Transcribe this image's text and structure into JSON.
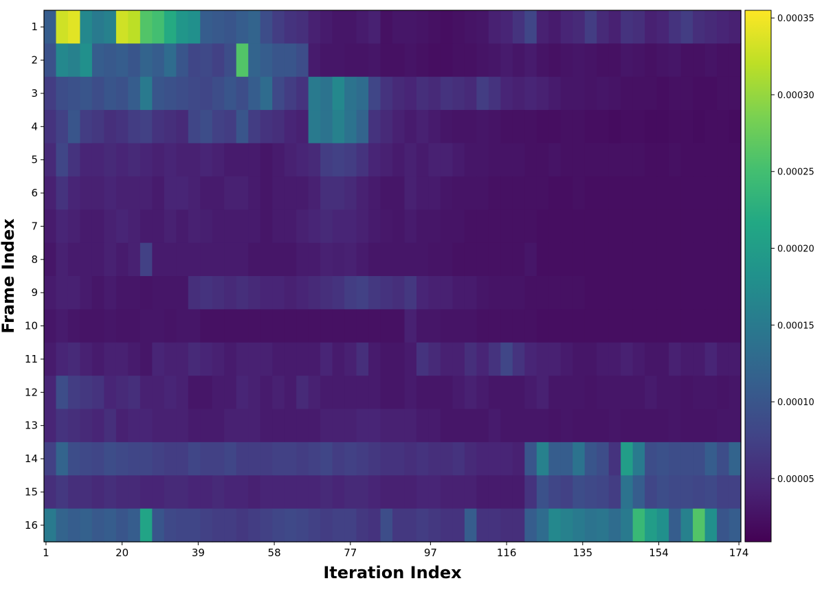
{
  "chart_data": {
    "type": "heatmap",
    "title": "",
    "xlabel": "Iteration Index",
    "ylabel": "Frame Index",
    "colormap": "viridis",
    "x_range": [
      1,
      174
    ],
    "x_ticks": [
      "1",
      "20",
      "39",
      "58",
      "77",
      "97",
      "116",
      "135",
      "154",
      "174"
    ],
    "x_tick_values": [
      1,
      20,
      39,
      58,
      77,
      97,
      116,
      135,
      154,
      174
    ],
    "y_ticks": [
      "1",
      "2",
      "3",
      "4",
      "5",
      "6",
      "7",
      "8",
      "9",
      "10",
      "11",
      "12",
      "13",
      "14",
      "15",
      "16"
    ],
    "colorbar": {
      "vmin": 8.8e-06,
      "vmax": 0.000355,
      "ticks": [
        "0.00005",
        "0.00010",
        "0.00015",
        "0.00020",
        "0.00025",
        "0.00030",
        "0.00035"
      ],
      "tick_values": [
        5e-05,
        0.0001,
        0.00015,
        0.0002,
        0.00025,
        0.0003,
        0.00035
      ]
    },
    "value_unit_scale": 1e-06,
    "iterations_per_block": 3,
    "rows": [
      [
        110,
        330,
        340,
        170,
        150,
        160,
        330,
        320,
        260,
        250,
        220,
        190,
        180,
        110,
        105,
        100,
        110,
        120,
        90,
        70,
        60,
        55,
        40,
        35,
        30,
        30,
        35,
        40,
        25,
        30,
        30,
        28,
        25,
        22,
        25,
        28,
        30,
        40,
        45,
        60,
        80,
        40,
        35,
        45,
        50,
        70,
        50,
        40,
        60,
        55,
        40,
        45,
        60,
        70,
        55,
        50,
        45,
        40
      ],
      [
        95,
        170,
        160,
        180,
        110,
        105,
        110,
        100,
        120,
        110,
        130,
        100,
        80,
        85,
        75,
        90,
        260,
        120,
        110,
        100,
        100,
        90,
        35,
        30,
        30,
        28,
        28,
        30,
        25,
        25,
        28,
        25,
        22,
        22,
        25,
        25,
        28,
        30,
        35,
        30,
        35,
        28,
        25,
        28,
        30,
        28,
        25,
        25,
        30,
        28,
        25,
        28,
        30,
        25,
        25,
        28,
        25,
        25
      ],
      [
        70,
        90,
        95,
        100,
        90,
        100,
        95,
        110,
        150,
        100,
        95,
        90,
        85,
        80,
        90,
        100,
        90,
        110,
        130,
        85,
        70,
        60,
        150,
        140,
        170,
        140,
        130,
        80,
        60,
        50,
        45,
        55,
        50,
        60,
        55,
        50,
        70,
        60,
        45,
        40,
        45,
        40,
        35,
        30,
        30,
        28,
        30,
        28,
        25,
        25,
        25,
        22,
        25,
        25,
        22,
        22,
        25,
        25
      ],
      [
        60,
        75,
        100,
        70,
        65,
        55,
        60,
        70,
        75,
        60,
        55,
        50,
        80,
        90,
        75,
        70,
        100,
        70,
        60,
        55,
        45,
        40,
        150,
        140,
        160,
        140,
        120,
        60,
        50,
        40,
        35,
        40,
        35,
        30,
        28,
        28,
        30,
        28,
        25,
        25,
        25,
        22,
        22,
        25,
        25,
        22,
        22,
        20,
        22,
        22,
        20,
        20,
        22,
        22,
        20,
        22,
        22,
        20
      ],
      [
        50,
        80,
        60,
        45,
        45,
        50,
        45,
        50,
        45,
        40,
        45,
        40,
        40,
        45,
        40,
        35,
        35,
        35,
        30,
        35,
        40,
        45,
        50,
        70,
        75,
        70,
        60,
        45,
        40,
        35,
        40,
        35,
        40,
        40,
        35,
        30,
        30,
        28,
        28,
        28,
        25,
        25,
        28,
        25,
        25,
        25,
        25,
        25,
        25,
        25,
        22,
        22,
        25,
        22,
        22,
        22,
        22,
        22
      ],
      [
        40,
        60,
        45,
        40,
        40,
        45,
        40,
        40,
        40,
        35,
        45,
        45,
        40,
        35,
        35,
        40,
        40,
        35,
        30,
        35,
        35,
        35,
        40,
        55,
        55,
        50,
        40,
        35,
        30,
        30,
        40,
        35,
        35,
        30,
        28,
        28,
        28,
        25,
        25,
        25,
        25,
        25,
        22,
        22,
        25,
        22,
        22,
        22,
        22,
        22,
        22,
        22,
        22,
        22,
        22,
        22,
        22,
        22
      ],
      [
        35,
        45,
        40,
        35,
        35,
        40,
        45,
        40,
        35,
        35,
        40,
        35,
        40,
        38,
        35,
        35,
        35,
        35,
        30,
        35,
        35,
        40,
        45,
        50,
        45,
        45,
        40,
        35,
        32,
        30,
        35,
        30,
        30,
        28,
        28,
        25,
        25,
        25,
        25,
        25,
        25,
        22,
        22,
        22,
        22,
        22,
        22,
        22,
        22,
        22,
        22,
        22,
        22,
        22,
        22,
        22,
        22,
        22
      ],
      [
        30,
        40,
        35,
        35,
        35,
        40,
        35,
        40,
        75,
        35,
        35,
        35,
        35,
        35,
        35,
        35,
        35,
        30,
        30,
        30,
        30,
        35,
        35,
        40,
        38,
        40,
        35,
        30,
        30,
        30,
        30,
        30,
        28,
        28,
        25,
        25,
        25,
        25,
        25,
        25,
        30,
        22,
        22,
        22,
        22,
        22,
        22,
        22,
        22,
        22,
        22,
        22,
        22,
        22,
        22,
        22,
        22,
        22
      ],
      [
        35,
        40,
        40,
        35,
        30,
        35,
        30,
        30,
        28,
        30,
        30,
        30,
        55,
        60,
        55,
        50,
        55,
        50,
        45,
        45,
        40,
        45,
        50,
        55,
        60,
        70,
        75,
        65,
        60,
        55,
        65,
        45,
        40,
        40,
        35,
        35,
        30,
        28,
        28,
        28,
        25,
        25,
        25,
        25,
        25,
        22,
        22,
        22,
        22,
        22,
        22,
        22,
        22,
        22,
        22,
        22,
        22,
        22
      ],
      [
        30,
        35,
        30,
        28,
        28,
        30,
        28,
        28,
        30,
        30,
        28,
        30,
        30,
        25,
        25,
        25,
        25,
        25,
        25,
        25,
        25,
        25,
        25,
        25,
        25,
        25,
        25,
        25,
        25,
        25,
        40,
        30,
        30,
        28,
        28,
        28,
        25,
        25,
        25,
        25,
        25,
        22,
        22,
        22,
        22,
        22,
        22,
        22,
        22,
        22,
        22,
        22,
        22,
        22,
        22,
        22,
        22,
        22
      ],
      [
        35,
        45,
        50,
        40,
        35,
        40,
        40,
        35,
        30,
        45,
        40,
        40,
        50,
        45,
        40,
        35,
        40,
        40,
        40,
        35,
        35,
        35,
        35,
        45,
        35,
        40,
        55,
        35,
        30,
        30,
        35,
        60,
        50,
        40,
        40,
        55,
        45,
        60,
        80,
        60,
        45,
        40,
        40,
        35,
        30,
        30,
        35,
        35,
        40,
        35,
        30,
        30,
        40,
        35,
        35,
        45,
        35,
        35
      ],
      [
        45,
        90,
        70,
        65,
        60,
        45,
        50,
        55,
        40,
        40,
        45,
        40,
        30,
        30,
        35,
        35,
        45,
        40,
        35,
        40,
        35,
        50,
        40,
        35,
        35,
        35,
        35,
        35,
        30,
        30,
        35,
        30,
        30,
        30,
        35,
        40,
        35,
        30,
        30,
        30,
        35,
        40,
        30,
        30,
        30,
        28,
        30,
        30,
        30,
        30,
        35,
        30,
        30,
        28,
        30,
        30,
        28,
        30
      ],
      [
        45,
        60,
        55,
        50,
        45,
        55,
        40,
        45,
        45,
        40,
        40,
        40,
        35,
        35,
        35,
        40,
        40,
        40,
        35,
        35,
        35,
        35,
        35,
        40,
        40,
        40,
        45,
        45,
        40,
        40,
        40,
        35,
        35,
        30,
        30,
        30,
        30,
        35,
        30,
        30,
        30,
        30,
        28,
        30,
        28,
        28,
        28,
        30,
        28,
        28,
        28,
        28,
        30,
        28,
        28,
        28,
        30,
        30
      ],
      [
        75,
        120,
        90,
        85,
        80,
        90,
        85,
        80,
        80,
        75,
        70,
        70,
        80,
        75,
        75,
        80,
        70,
        70,
        70,
        75,
        75,
        70,
        75,
        80,
        70,
        75,
        70,
        65,
        60,
        60,
        55,
        60,
        55,
        55,
        60,
        50,
        45,
        45,
        45,
        40,
        100,
        160,
        110,
        110,
        140,
        100,
        90,
        60,
        200,
        150,
        90,
        95,
        90,
        90,
        90,
        110,
        90,
        120
      ],
      [
        55,
        65,
        55,
        55,
        50,
        55,
        50,
        50,
        45,
        45,
        50,
        50,
        45,
        45,
        50,
        45,
        45,
        40,
        45,
        45,
        45,
        45,
        45,
        50,
        45,
        50,
        50,
        45,
        40,
        40,
        40,
        45,
        45,
        40,
        40,
        40,
        35,
        35,
        35,
        35,
        60,
        95,
        80,
        75,
        90,
        85,
        80,
        70,
        140,
        110,
        80,
        90,
        85,
        85,
        80,
        85,
        75,
        75
      ],
      [
        150,
        120,
        110,
        115,
        105,
        110,
        100,
        110,
        210,
        100,
        85,
        80,
        80,
        75,
        70,
        70,
        65,
        70,
        75,
        80,
        85,
        80,
        75,
        70,
        75,
        75,
        65,
        60,
        90,
        65,
        65,
        70,
        65,
        60,
        60,
        110,
        60,
        60,
        55,
        55,
        110,
        130,
        170,
        160,
        150,
        140,
        145,
        130,
        150,
        240,
        200,
        180,
        110,
        160,
        260,
        180,
        100,
        110
      ]
    ]
  }
}
